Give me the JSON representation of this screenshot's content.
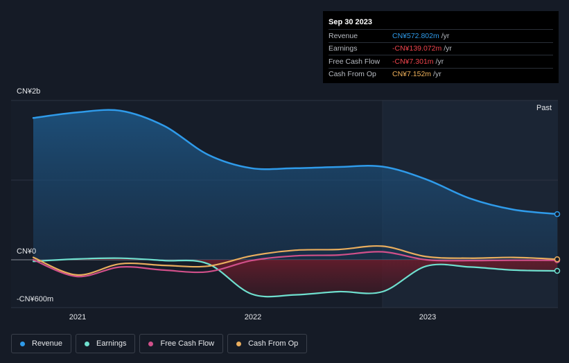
{
  "tooltip": {
    "date": "Sep 30 2023",
    "rows": [
      {
        "name": "Revenue",
        "value": "CN¥572.802m",
        "unit": "/yr",
        "color": "#2f9bea"
      },
      {
        "name": "Earnings",
        "value": "-CN¥139.072m",
        "unit": "/yr",
        "color": "#f0444c"
      },
      {
        "name": "Free Cash Flow",
        "value": "-CN¥7.301m",
        "unit": "/yr",
        "color": "#f0444c"
      },
      {
        "name": "Cash From Op",
        "value": "CN¥7.152m",
        "unit": "/yr",
        "color": "#f2b35b"
      }
    ]
  },
  "past_label": "Past",
  "legend": [
    {
      "label": "Revenue",
      "color": "#2f9bea"
    },
    {
      "label": "Earnings",
      "color": "#6fe0cf"
    },
    {
      "label": "Free Cash Flow",
      "color": "#d1508a"
    },
    {
      "label": "Cash From Op",
      "color": "#eaae5e"
    }
  ],
  "chart_data": {
    "type": "area",
    "y_unit": "CN¥m",
    "ylim": [
      -600,
      2000
    ],
    "y_tick_labels": [
      "CN¥2b",
      "CN¥0",
      "-CN¥600m"
    ],
    "x_tick_labels": [
      "2021",
      "2022",
      "2023"
    ],
    "grid": true,
    "x": [
      "2020-09-30",
      "2020-12-31",
      "2021-03-31",
      "2021-06-30",
      "2021-09-30",
      "2021-12-31",
      "2022-03-31",
      "2022-06-30",
      "2022-09-30",
      "2022-12-31",
      "2023-03-31",
      "2023-06-30",
      "2023-09-30"
    ],
    "series": [
      {
        "name": "Revenue",
        "color": "#2f9bea",
        "values": [
          1780,
          1850,
          1870,
          1680,
          1320,
          1150,
          1150,
          1165,
          1170,
          1010,
          770,
          630,
          573
        ]
      },
      {
        "name": "Earnings",
        "color": "#6fe0cf",
        "values": [
          -20,
          10,
          20,
          -10,
          -50,
          -430,
          -440,
          -400,
          -400,
          -80,
          -90,
          -130,
          -139
        ]
      },
      {
        "name": "Free Cash Flow",
        "color": "#d1508a",
        "values": [
          0,
          -210,
          -90,
          -130,
          -150,
          -10,
          50,
          60,
          100,
          0,
          -10,
          -5,
          -7
        ]
      },
      {
        "name": "Cash From Op",
        "color": "#eaae5e",
        "values": [
          30,
          -190,
          -50,
          -70,
          -80,
          50,
          120,
          130,
          170,
          40,
          20,
          30,
          7
        ]
      }
    ]
  }
}
